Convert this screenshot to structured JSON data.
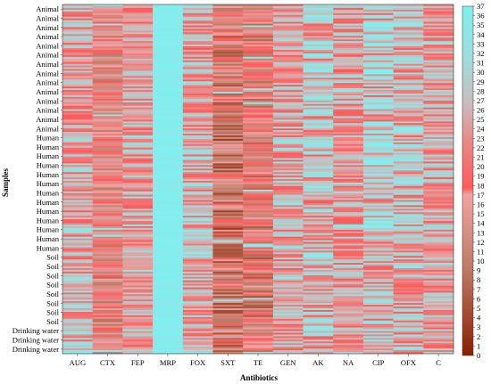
{
  "chart_data": {
    "type": "heatmap",
    "title": "",
    "xlabel": "Antibiotics",
    "ylabel": "Samples",
    "x_categories": [
      "AUG",
      "CTX",
      "FEP",
      "MRP",
      "FOX",
      "SXT",
      "TE",
      "GEN",
      "AK",
      "NA",
      "CIP",
      "OFX",
      "C"
    ],
    "y_labels": [
      {
        "label": "Animal",
        "group": "Animal"
      },
      {
        "label": "Animal",
        "group": "Animal"
      },
      {
        "label": "Animal",
        "group": "Animal"
      },
      {
        "label": "Animal",
        "group": "Animal"
      },
      {
        "label": "Animal",
        "group": "Animal"
      },
      {
        "label": "Animal",
        "group": "Animal"
      },
      {
        "label": "Animal",
        "group": "Animal"
      },
      {
        "label": "Animal",
        "group": "Animal"
      },
      {
        "label": "Animal",
        "group": "Animal"
      },
      {
        "label": "Animal",
        "group": "Animal"
      },
      {
        "label": "Animal",
        "group": "Animal"
      },
      {
        "label": "Animal",
        "group": "Animal"
      },
      {
        "label": "Animal",
        "group": "Animal"
      },
      {
        "label": "Animal",
        "group": "Animal"
      },
      {
        "label": "Human",
        "group": "Human"
      },
      {
        "label": "Human",
        "group": "Human"
      },
      {
        "label": "Human",
        "group": "Human"
      },
      {
        "label": "Human",
        "group": "Human"
      },
      {
        "label": "Human",
        "group": "Human"
      },
      {
        "label": "Human",
        "group": "Human"
      },
      {
        "label": "Human",
        "group": "Human"
      },
      {
        "label": "Human",
        "group": "Human"
      },
      {
        "label": "Human",
        "group": "Human"
      },
      {
        "label": "Human",
        "group": "Human"
      },
      {
        "label": "Human",
        "group": "Human"
      },
      {
        "label": "Human",
        "group": "Human"
      },
      {
        "label": "Human",
        "group": "Human"
      },
      {
        "label": "Soil",
        "group": "Soil"
      },
      {
        "label": "Soil",
        "group": "Soil"
      },
      {
        "label": "Soil",
        "group": "Soil"
      },
      {
        "label": "Soil",
        "group": "Soil"
      },
      {
        "label": "Soil",
        "group": "Soil"
      },
      {
        "label": "Soil",
        "group": "Soil"
      },
      {
        "label": "Soil",
        "group": "Soil"
      },
      {
        "label": "Soil",
        "group": "Soil"
      },
      {
        "label": "Drinking water",
        "group": "Drinking water"
      },
      {
        "label": "Drinking water",
        "group": "Drinking water"
      },
      {
        "label": "Drinking water",
        "group": "Drinking water"
      }
    ],
    "column_means": [
      25,
      17,
      23,
      36,
      25,
      12,
      14,
      24,
      27,
      24,
      29,
      27,
      24
    ],
    "group_column_means": {
      "Animal": [
        24,
        17,
        22,
        36,
        25,
        13,
        15,
        24,
        28,
        25,
        30,
        28,
        24
      ],
      "Human": [
        25,
        17,
        24,
        36,
        26,
        11,
        14,
        25,
        27,
        24,
        29,
        27,
        24
      ],
      "Soil": [
        25,
        16,
        23,
        36,
        25,
        11,
        13,
        24,
        26,
        23,
        28,
        26,
        24
      ],
      "Drinking water": [
        26,
        18,
        24,
        36,
        24,
        12,
        14,
        25,
        27,
        25,
        30,
        28,
        25
      ]
    },
    "colorbar": {
      "min": 0,
      "max": 37,
      "ticks": [
        0,
        1,
        2,
        3,
        4,
        5,
        6,
        7,
        8,
        9,
        10,
        11,
        12,
        13,
        14,
        15,
        16,
        17,
        18,
        19,
        20,
        21,
        22,
        23,
        24,
        25,
        26,
        27,
        28,
        29,
        30,
        31,
        32,
        33,
        34,
        35,
        36,
        37
      ],
      "colors": [
        "#8b1e00",
        "#b5704f",
        "#d8a0a0",
        "#ff4d4d",
        "#c8c0c0",
        "#72e0e0",
        "#8ef0f0"
      ]
    },
    "grid": false
  }
}
